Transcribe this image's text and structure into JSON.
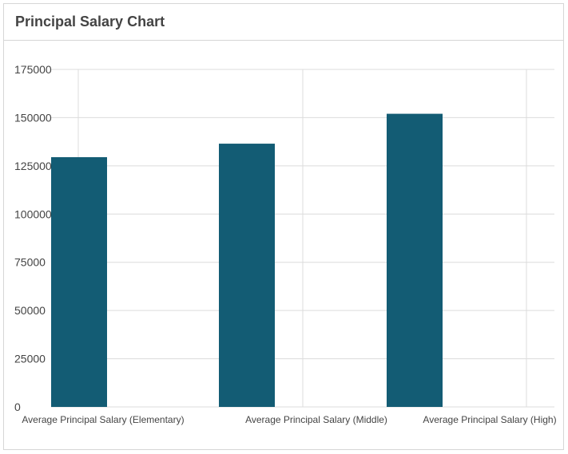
{
  "panel": {
    "title": "Principal Salary Chart"
  },
  "chart_data": {
    "type": "bar",
    "title": "",
    "xlabel": "",
    "ylabel": "",
    "categories": [
      "Average Principal Salary (Elementary)",
      "Average Principal Salary (Middle)",
      "Average Principal Salary (High)"
    ],
    "values": [
      129500,
      136500,
      152000
    ],
    "ylim": [
      0,
      175000
    ],
    "yticks": [
      0,
      25000,
      50000,
      75000,
      100000,
      125000,
      150000,
      175000
    ],
    "ytick_labels": [
      "0",
      "25000",
      "50000",
      "75000",
      "100000",
      "125000",
      "150000",
      "175000"
    ],
    "grid": true,
    "legend": "none",
    "bar_color": "#135c74",
    "grid_color": "#dcdcdc"
  }
}
